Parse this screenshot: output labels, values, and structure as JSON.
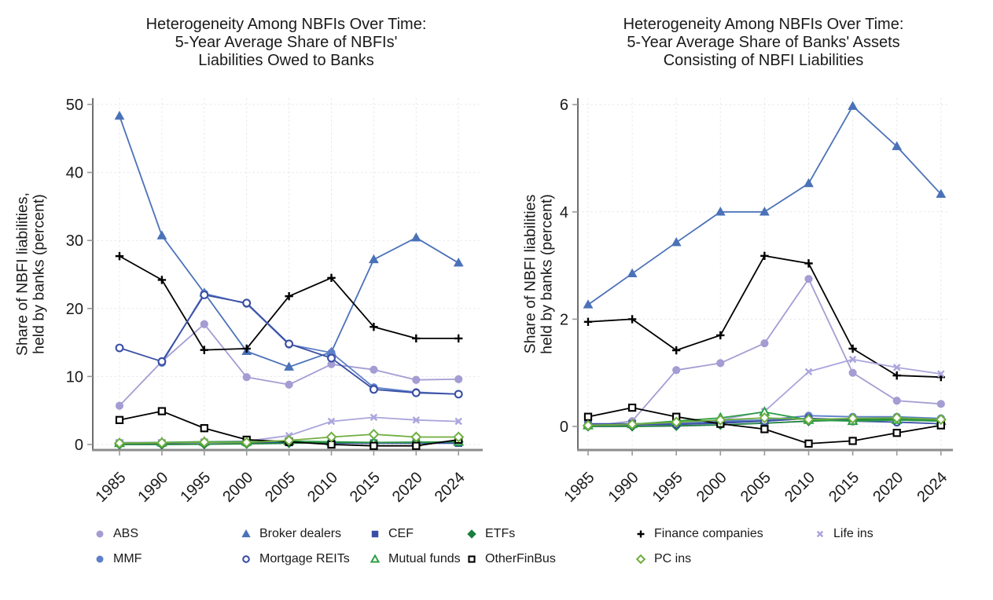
{
  "page": {
    "background": "#ffffff"
  },
  "series_defs": {
    "ABS": {
      "marker": "circle",
      "color": "#a49dd3",
      "open": false
    },
    "Broker dealers": {
      "marker": "triangle",
      "color": "#4b72b8",
      "open": false
    },
    "CEF": {
      "marker": "square",
      "color": "#3a4fa4",
      "open": false
    },
    "ETFs": {
      "marker": "diamond",
      "color": "#1b7e3c",
      "open": false
    },
    "Finance companies": {
      "marker": "plus",
      "color": "#000000",
      "open": false
    },
    "Life ins": {
      "marker": "x",
      "color": "#aaa5dc",
      "open": false
    },
    "MMF": {
      "marker": "circle",
      "color": "#5d80c8",
      "open": false
    },
    "Mortgage REITs": {
      "marker": "circle",
      "color": "#3a4fa4",
      "open": true
    },
    "Mutual funds": {
      "marker": "triangle",
      "color": "#2e9e45",
      "open": true
    },
    "OtherFinBus": {
      "marker": "square",
      "color": "#000000",
      "open": true
    },
    "PC ins": {
      "marker": "diamond",
      "color": "#6fae3f",
      "open": true
    }
  },
  "chart_data": [
    {
      "type": "line",
      "title": "Heterogeneity Among NBFIs Over Time:\n5-Year Average Share of NBFIs'\nLiabilities Owed to Banks",
      "ylabel": "Share of NBFI liabilities,\nheld by banks (percent)",
      "x_categories": [
        "1985",
        "1990",
        "1995",
        "2000",
        "2005",
        "2010",
        "2015",
        "2020",
        "2024"
      ],
      "yticks": [
        0,
        10,
        20,
        30,
        40,
        50
      ],
      "ylim": [
        -0.8,
        51.0
      ],
      "grid": true,
      "legend_position": "bottom",
      "series": [
        {
          "name": "ABS",
          "values": [
            5.7,
            12.2,
            17.7,
            9.9,
            8.8,
            11.8,
            11.0,
            9.5,
            9.6
          ]
        },
        {
          "name": "Broker dealers",
          "values": [
            48.3,
            30.7,
            22.3,
            13.7,
            11.4,
            13.6,
            27.2,
            30.4,
            26.7
          ]
        },
        {
          "name": "CEF",
          "values": [
            0.2,
            0.2,
            0.3,
            0.3,
            0.3,
            0.2,
            0.2,
            0.2,
            0.2
          ]
        },
        {
          "name": "ETFs",
          "values": [
            0.0,
            0.0,
            0.05,
            0.1,
            0.2,
            0.3,
            0.3,
            0.35,
            0.4
          ]
        },
        {
          "name": "Finance companies",
          "values": [
            27.7,
            24.2,
            13.9,
            14.1,
            21.8,
            24.5,
            17.3,
            15.6,
            15.6
          ]
        },
        {
          "name": "Life ins",
          "values": [
            0.3,
            0.3,
            0.4,
            0.5,
            1.3,
            3.4,
            4.0,
            3.6,
            3.4
          ]
        },
        {
          "name": "MMF",
          "values": [
            null,
            12.0,
            22.2,
            20.7,
            14.7,
            13.5,
            8.4,
            7.7,
            7.4
          ]
        },
        {
          "name": "Mortgage REITs",
          "values": [
            14.2,
            12.2,
            22.0,
            20.8,
            14.8,
            12.7,
            8.1,
            7.6,
            7.4
          ]
        },
        {
          "name": "Mutual funds",
          "values": [
            0.2,
            0.3,
            0.4,
            0.4,
            0.5,
            0.4,
            0.3,
            0.3,
            0.4
          ]
        },
        {
          "name": "OtherFinBus",
          "values": [
            3.6,
            4.9,
            2.4,
            0.7,
            0.4,
            0.0,
            -0.2,
            -0.2,
            0.7
          ]
        },
        {
          "name": "PC ins",
          "values": [
            0.2,
            0.25,
            0.35,
            0.3,
            0.6,
            1.1,
            1.5,
            1.1,
            1.1
          ]
        }
      ]
    },
    {
      "type": "line",
      "title": "Heterogeneity Among NBFIs Over Time:\n5-Year Average Share of Banks' Assets\nConsisting of NBFI Liabilities",
      "ylabel": "Share of NBFI liabilities\nheld by banks (percent)",
      "x_categories": [
        "1985",
        "1990",
        "1995",
        "2000",
        "2005",
        "2010",
        "2015",
        "2020",
        "2024"
      ],
      "yticks": [
        0,
        2,
        4,
        6
      ],
      "ylim": [
        -0.44,
        6.12
      ],
      "grid": true,
      "legend_position": "bottom",
      "series": [
        {
          "name": "ABS",
          "values": [
            0.0,
            0.1,
            1.05,
            1.18,
            1.55,
            2.75,
            1.0,
            0.48,
            0.42
          ]
        },
        {
          "name": "Broker dealers",
          "values": [
            2.27,
            2.85,
            3.43,
            4.0,
            4.0,
            4.53,
            5.97,
            5.22,
            4.33
          ]
        },
        {
          "name": "CEF",
          "values": [
            0.05,
            0.05,
            0.06,
            0.08,
            0.1,
            0.15,
            0.13,
            0.12,
            0.1
          ]
        },
        {
          "name": "ETFs",
          "values": [
            0.0,
            0.0,
            0.01,
            0.03,
            0.06,
            0.1,
            0.12,
            0.14,
            0.12
          ]
        },
        {
          "name": "Finance companies",
          "values": [
            1.95,
            2.0,
            1.42,
            1.7,
            3.18,
            3.04,
            1.45,
            0.95,
            0.92
          ]
        },
        {
          "name": "Life ins",
          "values": [
            0.02,
            0.03,
            0.05,
            0.12,
            0.28,
            1.02,
            1.25,
            1.1,
            0.98
          ]
        },
        {
          "name": "MMF",
          "values": [
            0.03,
            0.03,
            0.05,
            0.1,
            0.12,
            0.2,
            0.18,
            0.18,
            0.15
          ]
        },
        {
          "name": "Mortgage REITs",
          "values": [
            0.02,
            0.03,
            0.04,
            0.06,
            0.1,
            0.15,
            0.1,
            0.08,
            0.05
          ]
        },
        {
          "name": "Mutual funds",
          "values": [
            0.02,
            0.04,
            0.1,
            0.16,
            0.27,
            0.12,
            0.1,
            0.12,
            0.1
          ]
        },
        {
          "name": "OtherFinBus",
          "values": [
            0.18,
            0.35,
            0.18,
            0.05,
            -0.05,
            -0.32,
            -0.27,
            -0.12,
            0.02
          ]
        },
        {
          "name": "PC ins",
          "values": [
            0.02,
            0.04,
            0.08,
            0.12,
            0.16,
            0.13,
            0.15,
            0.16,
            0.13
          ]
        }
      ]
    }
  ],
  "legend": {
    "rows": [
      [
        "ABS",
        "Broker dealers",
        "CEF",
        "ETFs",
        "Finance companies",
        "Life ins"
      ],
      [
        "MMF",
        "Mortgage REITs",
        "Mutual funds",
        "OtherFinBus",
        "PC ins"
      ]
    ]
  },
  "style_colors": {
    "gridline": "#e8e8ee",
    "y_axis": "#4a4a4a",
    "x_axis": "#8c8c8c",
    "tick": "#999999",
    "text": "#1a1a1a"
  }
}
